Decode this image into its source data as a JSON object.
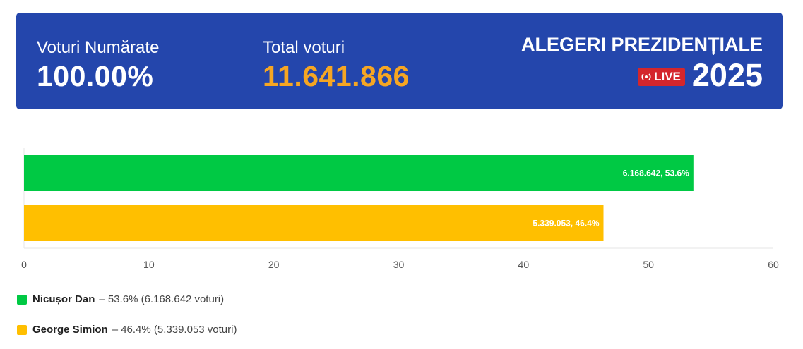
{
  "header": {
    "counted_label": "Voturi Numărate",
    "counted_value": "100.00%",
    "total_label": "Total voturi",
    "total_value": "11.641.866",
    "title": "ALEGERI PREZIDENȚIALE",
    "live_label": "LIVE",
    "year": "2025",
    "colors": {
      "background": "#2446ac",
      "total_value": "#f6a623",
      "live_badge": "#d4262c"
    }
  },
  "chart_data": {
    "type": "bar",
    "orientation": "horizontal",
    "categories": [
      "Nicușor Dan",
      "George Simion"
    ],
    "values": [
      53.6,
      46.4
    ],
    "bar_labels": [
      "6.168.642, 53.6%",
      "5.339.053, 46.4%"
    ],
    "colors": [
      "#00c944",
      "#ffbf00"
    ],
    "xlim": [
      0,
      60
    ],
    "ticks": [
      "0",
      "10",
      "20",
      "30",
      "40",
      "50",
      "60"
    ],
    "grid": false
  },
  "legend": [
    {
      "name": "Nicușor Dan",
      "detail": "– 53.6% (6.168.642 voturi)",
      "color": "#00c944"
    },
    {
      "name": "George Simion",
      "detail": "– 46.4% (5.339.053 voturi)",
      "color": "#ffbf00"
    }
  ]
}
